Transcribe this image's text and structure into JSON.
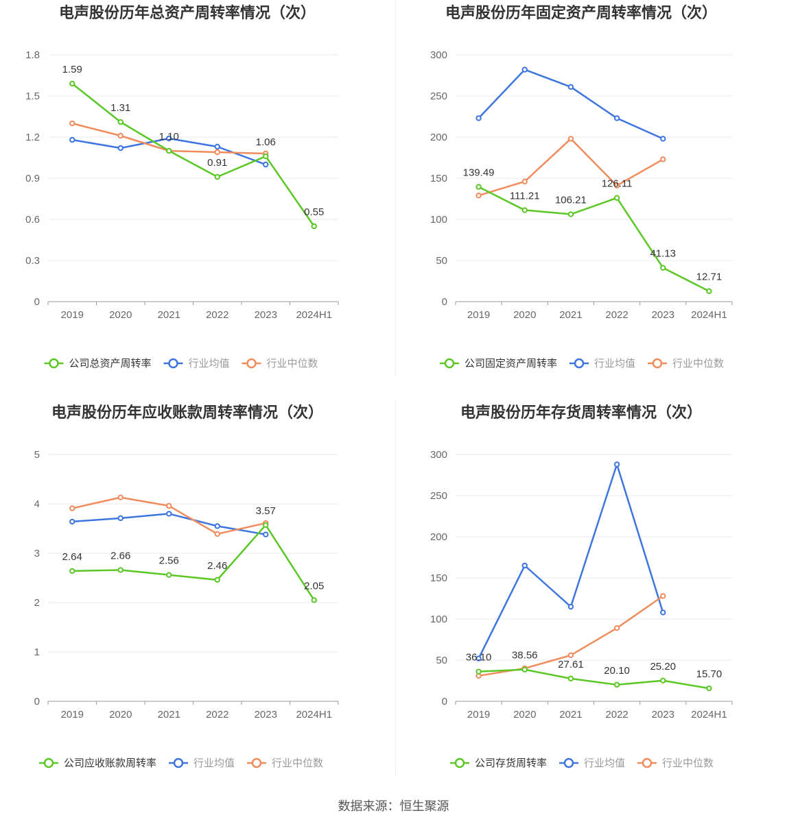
{
  "colors": {
    "company": "#5ac725",
    "industry_avg": "#3c74e0",
    "industry_median": "#f28b5c",
    "grid": "#e6e8f0",
    "axis": "#999999",
    "tick_text": "#666666",
    "title": "#333333"
  },
  "icon": "circle-marker-legend-icon",
  "source_text": "数据来源：恒生聚源",
  "chart_data": [
    {
      "type": "line",
      "title": "电声股份历年总资产周转率情况（次）",
      "categories": [
        "2019",
        "2020",
        "2021",
        "2022",
        "2023",
        "2024H1"
      ],
      "y_ticks": [
        "0",
        "0.3",
        "0.6",
        "0.9",
        "1.2",
        "1.5",
        "1.8"
      ],
      "ylim": [
        0,
        1.8
      ],
      "grid": true,
      "legend_position": "bottom",
      "series": [
        {
          "name": "公司总资产周转率",
          "key": "company",
          "values": [
            1.59,
            1.31,
            1.1,
            0.91,
            1.06,
            0.55
          ],
          "labels": [
            "1.59",
            "1.31",
            "1.10",
            "0.91",
            "1.06",
            "0.55"
          ]
        },
        {
          "name": "行业均值",
          "key": "industry_avg",
          "values": [
            1.18,
            1.12,
            1.19,
            1.13,
            1.0,
            null
          ]
        },
        {
          "name": "行业中位数",
          "key": "industry_median",
          "values": [
            1.3,
            1.21,
            1.1,
            1.09,
            1.08,
            null
          ]
        }
      ]
    },
    {
      "type": "line",
      "title": "电声股份历年固定资产周转率情况（次）",
      "categories": [
        "2019",
        "2020",
        "2021",
        "2022",
        "2023",
        "2024H1"
      ],
      "y_ticks": [
        "0",
        "50",
        "100",
        "150",
        "200",
        "250",
        "300"
      ],
      "ylim": [
        0,
        300
      ],
      "grid": true,
      "legend_position": "bottom",
      "series": [
        {
          "name": "公司固定资产周转率",
          "key": "company",
          "values": [
            139.49,
            111.21,
            106.21,
            126.11,
            41.13,
            12.71
          ],
          "labels": [
            "139.49",
            "111.21",
            "106.21",
            "126.11",
            "41.13",
            "12.71"
          ]
        },
        {
          "name": "行业均值",
          "key": "industry_avg",
          "values": [
            223,
            282,
            261,
            223,
            198,
            null
          ]
        },
        {
          "name": "行业中位数",
          "key": "industry_median",
          "values": [
            129,
            146,
            198,
            141,
            173,
            null
          ]
        }
      ]
    },
    {
      "type": "line",
      "title": "电声股份历年应收账款周转率情况（次）",
      "categories": [
        "2019",
        "2020",
        "2021",
        "2022",
        "2023",
        "2024H1"
      ],
      "y_ticks": [
        "0",
        "1",
        "2",
        "3",
        "4",
        "5"
      ],
      "ylim": [
        0,
        5
      ],
      "grid": true,
      "legend_position": "bottom",
      "series": [
        {
          "name": "公司应收账款周转率",
          "key": "company",
          "values": [
            2.64,
            2.66,
            2.56,
            2.46,
            3.57,
            2.05
          ],
          "labels": [
            "2.64",
            "2.66",
            "2.56",
            "2.46",
            "3.57",
            "2.05"
          ]
        },
        {
          "name": "行业均值",
          "key": "industry_avg",
          "values": [
            3.64,
            3.71,
            3.8,
            3.55,
            3.38,
            null
          ]
        },
        {
          "name": "行业中位数",
          "key": "industry_median",
          "values": [
            3.91,
            4.13,
            3.96,
            3.39,
            3.61,
            null
          ]
        }
      ]
    },
    {
      "type": "line",
      "title": "电声股份历年存货周转率情况（次）",
      "categories": [
        "2019",
        "2020",
        "2021",
        "2022",
        "2023",
        "2024H1"
      ],
      "y_ticks": [
        "0",
        "50",
        "100",
        "150",
        "200",
        "250",
        "300"
      ],
      "ylim": [
        0,
        300
      ],
      "grid": true,
      "legend_position": "bottom",
      "series": [
        {
          "name": "公司存货周转率",
          "key": "company",
          "values": [
            36.1,
            38.56,
            27.61,
            20.1,
            25.2,
            15.7
          ],
          "labels": [
            "36.10",
            "38.56",
            "27.61",
            "20.10",
            "25.20",
            "15.70"
          ]
        },
        {
          "name": "行业均值",
          "key": "industry_avg",
          "values": [
            52,
            165,
            115,
            288,
            108,
            null
          ]
        },
        {
          "name": "行业中位数",
          "key": "industry_median",
          "values": [
            31,
            40,
            56,
            89,
            128,
            null
          ]
        }
      ]
    }
  ]
}
